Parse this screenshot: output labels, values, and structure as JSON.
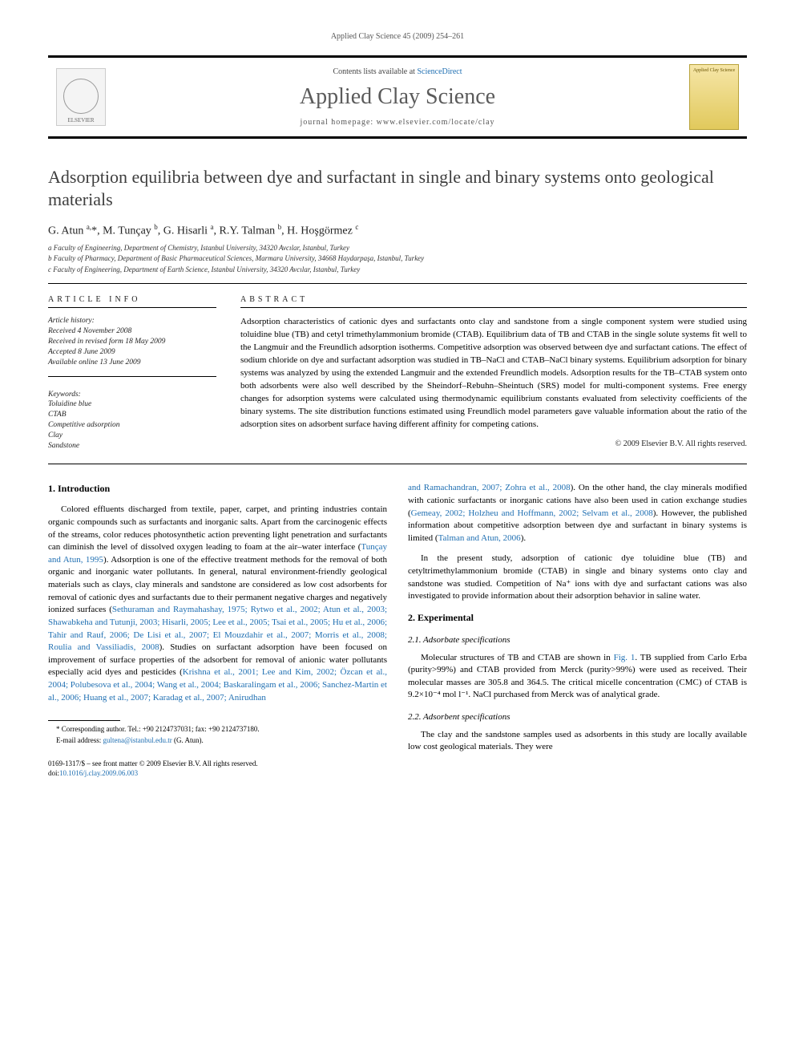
{
  "running_header": "Applied Clay Science 45 (2009) 254–261",
  "banner": {
    "contents_prefix": "Contents lists available at ",
    "contents_link": "ScienceDirect",
    "journal_name": "Applied Clay Science",
    "homepage_prefix": "journal homepage: ",
    "homepage": "www.elsevier.com/locate/clay",
    "elsevier_label": "ELSEVIER",
    "cover_label": "Applied Clay Science"
  },
  "title": "Adsorption equilibria between dye and surfactant in single and binary systems onto geological materials",
  "authors_html": "G. Atun <sup>a,</sup>*, M. Tunçay <sup>b</sup>, G. Hisarli <sup>a</sup>, R.Y. Talman <sup>b</sup>, H. Hoşgörmez <sup>c</sup>",
  "affiliations": [
    "a Faculty of Engineering, Department of Chemistry, Istanbul University, 34320 Avcılar, Istanbul, Turkey",
    "b Faculty of Pharmacy, Department of Basic Pharmaceutical Sciences, Marmara University, 34668 Haydarpaşa, Istanbul, Turkey",
    "c Faculty of Engineering, Department of Earth Science, Istanbul University, 34320 Avcılar, Istanbul, Turkey"
  ],
  "info": {
    "head": "ARTICLE INFO",
    "history_title": "Article history:",
    "history": [
      "Received 4 November 2008",
      "Received in revised form 18 May 2009",
      "Accepted 8 June 2009",
      "Available online 13 June 2009"
    ],
    "keywords_title": "Keywords:",
    "keywords": [
      "Toluidine blue",
      "CTAB",
      "Competitive adsorption",
      "Clay",
      "Sandstone"
    ]
  },
  "abstract": {
    "head": "ABSTRACT",
    "text": "Adsorption characteristics of cationic dyes and surfactants onto clay and sandstone from a single component system were studied using toluidine blue (TB) and cetyl trimethylammonium bromide (CTAB). Equilibrium data of TB and CTAB in the single solute systems fit well to the Langmuir and the Freundlich adsorption isotherms. Competitive adsorption was observed between dye and surfactant cations. The effect of sodium chloride on dye and surfactant adsorption was studied in TB–NaCl and CTAB–NaCl binary systems. Equilibrium adsorption for binary systems was analyzed by using the extended Langmuir and the extended Freundlich models. Adsorption results for the TB–CTAB system onto both adsorbents were also well described by the Sheindorf–Rebuhn–Sheintuch (SRS) model for multi-component systems. Free energy changes for adsorption systems were calculated using thermodynamic equilibrium constants evaluated from selectivity coefficients of the binary systems. The site distribution functions estimated using Freundlich model parameters gave valuable information about the ratio of the adsorption sites on adsorbent surface having different affinity for competing cations.",
    "copyright": "© 2009 Elsevier B.V. All rights reserved."
  },
  "sections": {
    "s1_head": "1. Introduction",
    "s1_p1_pre": "Colored effluents discharged from textile, paper, carpet, and printing industries contain organic compounds such as surfactants and inorganic salts. Apart from the carcinogenic effects of the streams, color reduces photosynthetic action preventing light penetration and surfactants can diminish the level of dissolved oxygen leading to foam at the air–water interface (",
    "s1_p1_ref1": "Tunçay and Atun, 1995",
    "s1_p1_mid1": "). Adsorption is one of the effective treatment methods for the removal of both organic and inorganic water pollutants. In general, natural environment-friendly geological materials such as clays, clay minerals and sandstone are considered as low cost adsorbents for removal of cationic dyes and surfactants due to their permanent negative charges and negatively ionized surfaces (",
    "s1_p1_ref2": "Sethuraman and Raymahashay, 1975; Rytwo et al., 2002; Atun et al., 2003; Shawabkeha and Tutunji, 2003; Hisarli, 2005; Lee et al., 2005; Tsai et al., 2005; Hu et al., 2006; Tahir and Rauf, 2006; De Lisi et al., 2007; El Mouzdahir et al., 2007; Morris et al., 2008; Roulia and Vassiliadis, 2008",
    "s1_p1_mid2": "). Studies on surfactant adsorption have been focused on improvement of surface properties of the adsorbent for removal of anionic water pollutants especially acid dyes and pesticides (",
    "s1_p1_ref3": "Krishna et al., 2001; Lee and Kim, 2002; Özcan et al., 2004; Polubesova et al., 2004; Wang et al., 2004; Baskaralingam et al., 2006; Sanchez-Martin et al., 2006; Huang et al., 2007; Karadag et al., 2007; Anirudhan ",
    "s1_p1_ref3b": "and Ramachandran, 2007; Zohra et al., 2008",
    "s1_p1_mid3": "). On the other hand, the clay minerals modified with cationic surfactants or inorganic cations have also been used in cation exchange studies (",
    "s1_p1_ref4": "Gemeay, 2002; Holzheu and Hoffmann, 2002; Selvam et al., 2008",
    "s1_p1_mid4": "). However, the published information about competitive adsorption between dye and surfactant in binary systems is limited (",
    "s1_p1_ref5": "Talman and Atun, 2006",
    "s1_p1_end": ").",
    "s1_p2": "In the present study, adsorption of cationic dye toluidine blue (TB) and cetyltrimethylammonium bromide (CTAB) in single and binary systems onto clay and sandstone was studied. Competition of Na⁺ ions with dye and surfactant cations was also investigated to provide information about their adsorption behavior in saline water.",
    "s2_head": "2. Experimental",
    "s21_head": "2.1. Adsorbate specifications",
    "s21_p_pre": "Molecular structures of TB and CTAB are shown in ",
    "s21_ref": "Fig. 1",
    "s21_p_post": ". TB supplied from Carlo Erba (purity>99%) and CTAB provided from Merck (purity>99%) were used as received. Their molecular masses are 305.8 and 364.5. The critical micelle concentration (CMC) of CTAB is 9.2×10⁻⁴ mol l⁻¹. NaCl purchased from Merck was of analytical grade.",
    "s22_head": "2.2. Adsorbent specifications",
    "s22_p": "The clay and the sandstone samples used as adsorbents in this study are locally available low cost geological materials. They were"
  },
  "footnote": {
    "corr": "* Corresponding author. Tel.: +90 2124737031; fax: +90 2124737180.",
    "email_label": "E-mail address: ",
    "email": "gultena@istanbul.edu.tr",
    "email_tail": " (G. Atun)."
  },
  "doi": {
    "front_matter": "0169-1317/$ – see front matter © 2009 Elsevier B.V. All rights reserved.",
    "label": "doi:",
    "value": "10.1016/j.clay.2009.06.003"
  }
}
